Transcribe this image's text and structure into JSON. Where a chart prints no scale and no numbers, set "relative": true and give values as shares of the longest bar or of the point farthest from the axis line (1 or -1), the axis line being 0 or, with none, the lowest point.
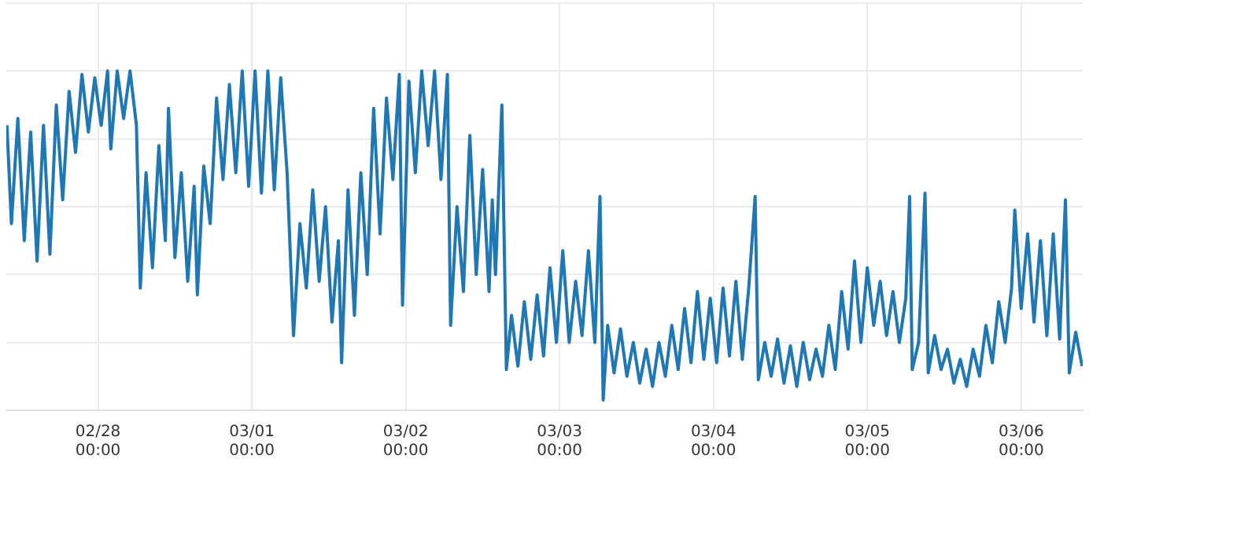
{
  "chart_data": {
    "type": "line",
    "relative": true,
    "color": "#1f77b4",
    "grid": true,
    "xlim": [
      "--02-27T09:42",
      "--03-06T09:36"
    ],
    "xticks": [
      {
        "value": "--02-28T00:00",
        "label": "02/28\n00:00"
      },
      {
        "value": "--03-01T00:00",
        "label": "03/01\n00:00"
      },
      {
        "value": "--03-02T00:00",
        "label": "03/02\n00:00"
      },
      {
        "value": "--03-03T00:00",
        "label": "03/03\n00:00"
      },
      {
        "value": "--03-04T00:00",
        "label": "03/04\n00:00"
      },
      {
        "value": "--03-05T00:00",
        "label": "03/05\n00:00"
      },
      {
        "value": "--03-06T00:00",
        "label": "03/06\n00:00"
      }
    ],
    "x": [
      "--02-27T09:48",
      "--02-27T10:30",
      "--02-27T11:30",
      "--02-27T12:30",
      "--02-27T13:30",
      "--02-27T14:30",
      "--02-27T15:30",
      "--02-27T16:30",
      "--02-27T17:30",
      "--02-27T18:30",
      "--02-27T19:30",
      "--02-27T20:30",
      "--02-27T21:30",
      "--02-27T22:30",
      "--02-27T23:30",
      "--02-28T00:30",
      "--02-28T01:30",
      "--02-28T02:00",
      "--02-28T03:00",
      "--02-28T04:00",
      "--02-28T05:00",
      "--02-28T06:00",
      "--02-28T06:36",
      "--02-28T07:30",
      "--02-28T08:30",
      "--02-28T09:30",
      "--02-28T10:30",
      "--02-28T11:00",
      "--02-28T12:00",
      "--02-28T13:00",
      "--02-28T14:00",
      "--02-28T15:00",
      "--02-28T15:30",
      "--02-28T16:30",
      "--02-28T17:30",
      "--02-28T18:30",
      "--02-28T19:30",
      "--02-28T20:30",
      "--02-28T21:30",
      "--02-28T22:30",
      "--02-28T23:30",
      "--03-01T00:30",
      "--03-01T01:30",
      "--03-01T02:30",
      "--03-01T03:30",
      "--03-01T04:30",
      "--03-01T05:30",
      "--03-01T06:30",
      "--03-01T07:30",
      "--03-01T08:30",
      "--03-01T09:30",
      "--03-01T10:30",
      "--03-01T11:30",
      "--03-01T12:30",
      "--03-01T13:30",
      "--03-01T14:00",
      "--03-01T15:00",
      "--03-01T16:00",
      "--03-01T17:00",
      "--03-01T18:00",
      "--03-01T19:00",
      "--03-01T20:00",
      "--03-01T21:00",
      "--03-01T22:00",
      "--03-01T23:00",
      "--03-01T23:30",
      "--03-02T00:30",
      "--03-02T01:30",
      "--03-02T02:30",
      "--03-02T03:30",
      "--03-02T04:30",
      "--03-02T05:30",
      "--03-02T06:30",
      "--03-02T07:00",
      "--03-02T08:00",
      "--03-02T09:00",
      "--03-02T10:00",
      "--03-02T11:00",
      "--03-02T12:00",
      "--03-02T13:00",
      "--03-02T13:30",
      "--03-02T14:00",
      "--03-02T15:00",
      "--03-02T15:42",
      "--03-02T16:30",
      "--03-02T17:30",
      "--03-02T18:30",
      "--03-02T19:30",
      "--03-02T20:30",
      "--03-02T21:30",
      "--03-02T22:30",
      "--03-02T23:30",
      "--03-03T00:30",
      "--03-03T01:30",
      "--03-03T02:30",
      "--03-03T03:30",
      "--03-03T04:30",
      "--03-03T05:30",
      "--03-03T06:18",
      "--03-03T06:48",
      "--03-03T07:30",
      "--03-03T08:30",
      "--03-03T09:30",
      "--03-03T10:30",
      "--03-03T11:30",
      "--03-03T12:30",
      "--03-03T13:30",
      "--03-03T14:30",
      "--03-03T15:30",
      "--03-03T16:30",
      "--03-03T17:30",
      "--03-03T18:30",
      "--03-03T19:30",
      "--03-03T20:30",
      "--03-03T21:30",
      "--03-03T22:30",
      "--03-03T23:30",
      "--03-04T00:30",
      "--03-04T01:30",
      "--03-04T02:30",
      "--03-04T03:30",
      "--03-04T04:30",
      "--03-04T05:30",
      "--03-04T06:30",
      "--03-04T07:00",
      "--03-04T08:00",
      "--03-04T09:00",
      "--03-04T10:00",
      "--03-04T11:00",
      "--03-04T12:00",
      "--03-04T13:00",
      "--03-04T14:00",
      "--03-04T15:00",
      "--03-04T16:00",
      "--03-04T17:00",
      "--03-04T18:00",
      "--03-04T19:00",
      "--03-04T20:00",
      "--03-04T21:00",
      "--03-04T22:00",
      "--03-04T23:00",
      "--03-05T00:00",
      "--03-05T01:00",
      "--03-05T02:00",
      "--03-05T03:00",
      "--03-05T04:00",
      "--03-05T05:00",
      "--03-05T06:00",
      "--03-05T06:36",
      "--03-05T07:00",
      "--03-05T08:00",
      "--03-05T09:00",
      "--03-05T09:30",
      "--03-05T10:30",
      "--03-05T11:30",
      "--03-05T12:30",
      "--03-05T13:30",
      "--03-05T14:30",
      "--03-05T15:30",
      "--03-05T16:30",
      "--03-05T17:30",
      "--03-05T18:30",
      "--03-05T19:30",
      "--03-05T20:30",
      "--03-05T21:30",
      "--03-05T22:30",
      "--03-05T23:00",
      "--03-06T00:00",
      "--03-06T01:00",
      "--03-06T02:00",
      "--03-06T03:00",
      "--03-06T04:00",
      "--03-06T05:00",
      "--03-06T06:00",
      "--03-06T06:54",
      "--03-06T07:30",
      "--03-06T08:30",
      "--03-06T09:30"
    ],
    "values": [
      0.84,
      0.55,
      0.86,
      0.5,
      0.82,
      0.44,
      0.84,
      0.46,
      0.9,
      0.62,
      0.94,
      0.76,
      0.99,
      0.82,
      0.98,
      0.84,
      1.0,
      0.77,
      1.0,
      0.86,
      1.0,
      0.84,
      0.36,
      0.7,
      0.42,
      0.78,
      0.5,
      0.89,
      0.45,
      0.7,
      0.38,
      0.66,
      0.34,
      0.72,
      0.55,
      0.92,
      0.68,
      0.96,
      0.7,
      1.0,
      0.66,
      1.0,
      0.64,
      1.0,
      0.65,
      0.98,
      0.7,
      0.22,
      0.55,
      0.36,
      0.65,
      0.38,
      0.6,
      0.26,
      0.5,
      0.14,
      0.65,
      0.28,
      0.7,
      0.4,
      0.89,
      0.52,
      0.92,
      0.68,
      0.99,
      0.31,
      0.97,
      0.7,
      1.0,
      0.78,
      1.0,
      0.68,
      0.99,
      0.25,
      0.6,
      0.35,
      0.81,
      0.4,
      0.71,
      0.35,
      0.62,
      0.4,
      0.9,
      0.12,
      0.28,
      0.13,
      0.32,
      0.15,
      0.34,
      0.16,
      0.42,
      0.2,
      0.47,
      0.2,
      0.38,
      0.22,
      0.47,
      0.2,
      0.63,
      0.03,
      0.25,
      0.11,
      0.24,
      0.1,
      0.2,
      0.08,
      0.18,
      0.07,
      0.2,
      0.1,
      0.25,
      0.12,
      0.3,
      0.14,
      0.35,
      0.15,
      0.33,
      0.14,
      0.36,
      0.16,
      0.38,
      0.15,
      0.36,
      0.63,
      0.09,
      0.2,
      0.1,
      0.21,
      0.08,
      0.19,
      0.07,
      0.2,
      0.09,
      0.18,
      0.1,
      0.25,
      0.12,
      0.35,
      0.18,
      0.44,
      0.2,
      0.42,
      0.25,
      0.38,
      0.22,
      0.35,
      0.2,
      0.33,
      0.63,
      0.12,
      0.2,
      0.64,
      0.11,
      0.22,
      0.12,
      0.18,
      0.08,
      0.15,
      0.07,
      0.18,
      0.1,
      0.25,
      0.14,
      0.32,
      0.2,
      0.36,
      0.59,
      0.3,
      0.52,
      0.26,
      0.5,
      0.22,
      0.52,
      0.21,
      0.62,
      0.11,
      0.23,
      0.13
    ]
  }
}
